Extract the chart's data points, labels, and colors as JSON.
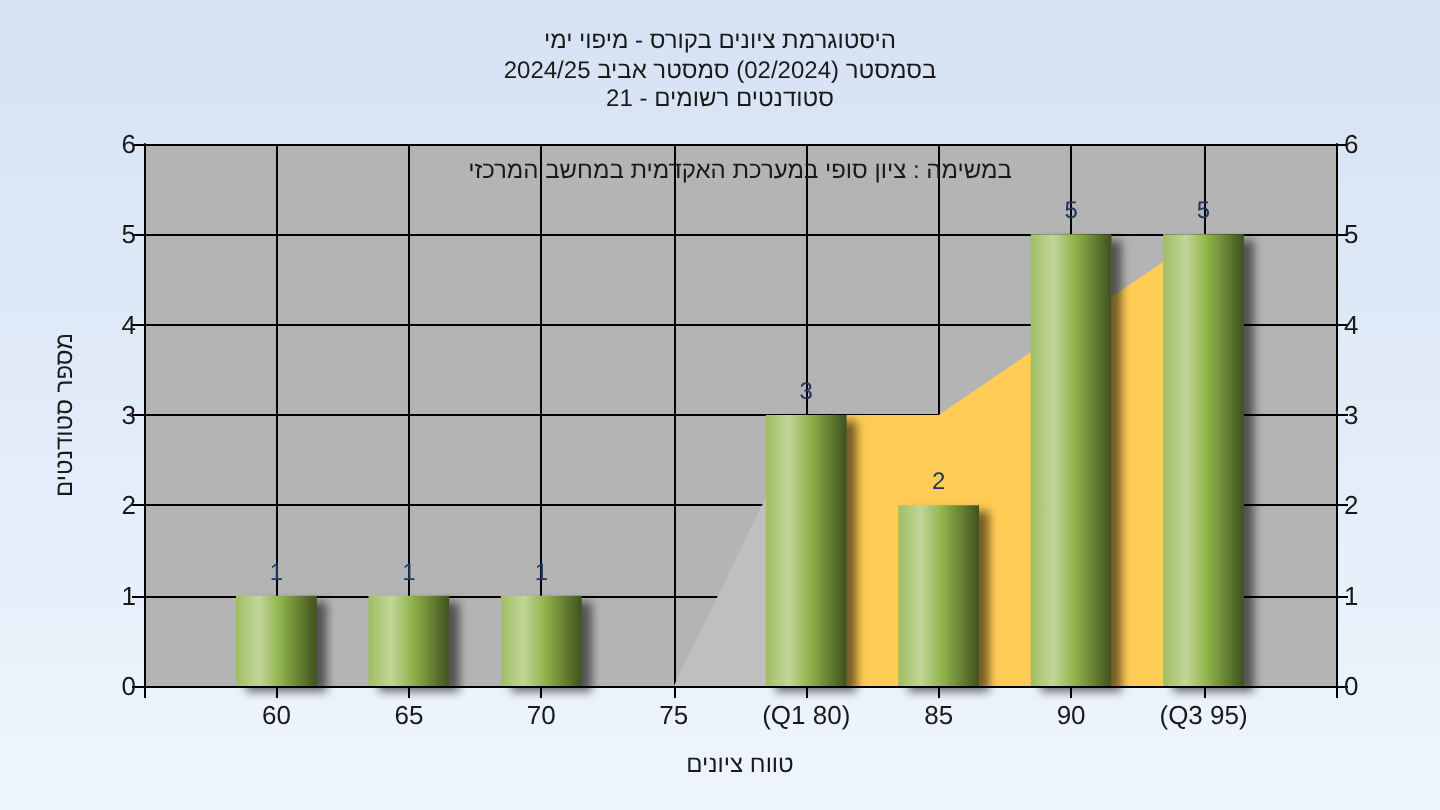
{
  "chart_data": {
    "type": "bar",
    "title": "היסטוגרמת ציונים בקורס - מיפוי ימי",
    "subtitle": "בסמסטר (02/2024) סמסטר אביב 2024/25\nסטודנטים רשומים - 21",
    "xlabel": "טווח ציונים",
    "ylabel": "מספר סטודנטים",
    "annotations": [
      "במשימה : ציון סופי במערכת האקדמית במחשב המרכזי"
    ],
    "x": [
      60,
      65,
      70,
      75,
      80,
      85,
      90,
      95
    ],
    "series": [
      {
        "type": "area",
        "color": "#bfbfbf",
        "x": [
          75,
          80
        ],
        "values": [
          0,
          3
        ]
      },
      {
        "type": "area",
        "color": "#ffcc55",
        "x": [
          80,
          85,
          95
        ],
        "values": [
          3,
          3,
          5
        ]
      },
      {
        "color": "#8fb348",
        "values": [
          1,
          1,
          1,
          0,
          3,
          2,
          5,
          5
        ],
        "value_labels": [
          "1",
          "1",
          "1",
          null,
          "3",
          "2",
          "5",
          "5"
        ]
      }
    ],
    "xlim": [
      55,
      100
    ],
    "xticks": [
      {
        "value": 55,
        "label": null
      },
      60,
      65,
      70,
      75,
      {
        "value": 80,
        "label": "(Q1 80)"
      },
      85,
      90,
      {
        "value": 95,
        "label": "(Q3 95)"
      },
      {
        "value": 100,
        "label": null
      }
    ],
    "ylim": [
      0,
      6
    ],
    "yticks": [
      0,
      1,
      2,
      3,
      4,
      5,
      6
    ],
    "y2lim": [
      0,
      6
    ],
    "y2ticks": [
      0,
      1,
      2,
      3,
      4,
      5,
      6
    ],
    "grid": true
  }
}
